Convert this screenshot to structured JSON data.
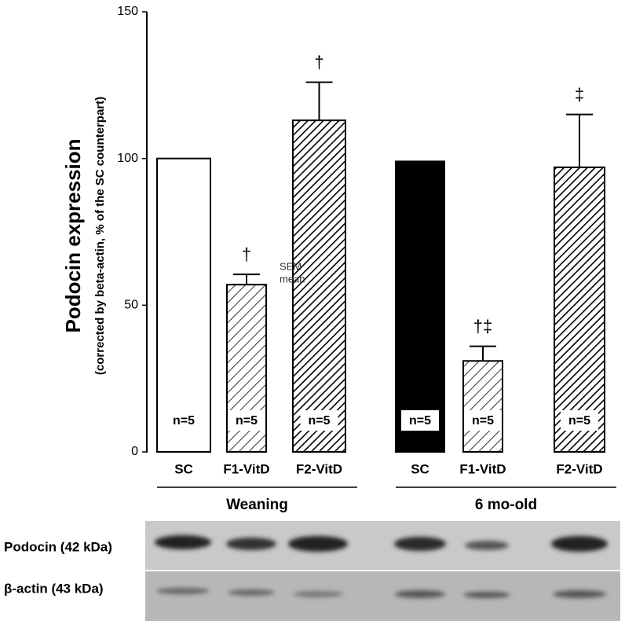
{
  "chart_data": {
    "type": "bar",
    "y_label": "Podocin expression",
    "y_sublabel": "(corrected by beta-actin, % of the SC counterpart)",
    "categories": [
      "SC",
      "F1-VitD",
      "F2-VitD",
      "SC",
      "F1-VitD",
      "F2-VitD"
    ],
    "values": [
      100,
      57,
      113,
      99,
      31,
      97
    ],
    "errors": [
      null,
      3.5,
      13,
      null,
      5,
      18
    ],
    "fills": [
      "white",
      "sparse-hatch",
      "dense-hatch",
      "black",
      "sparse-hatch",
      "dense-hatch"
    ],
    "n_labels": [
      "n=5",
      "n=5",
      "n=5",
      "n=5",
      "n=5",
      "n=5"
    ],
    "markers": [
      null,
      "†",
      "†",
      null,
      "†‡",
      "‡"
    ],
    "key": {
      "error": "SEM",
      "value": "mean"
    },
    "groups": [
      {
        "label": "Weaning",
        "size": 3
      },
      {
        "label": "6 mo-old",
        "size": 3
      }
    ],
    "ylim": [
      0,
      150
    ],
    "yticks": [
      0,
      50,
      100,
      150
    ],
    "blot_labels": [
      "Podocin (42 kDa)",
      "β-actin (43 kDa)"
    ]
  }
}
